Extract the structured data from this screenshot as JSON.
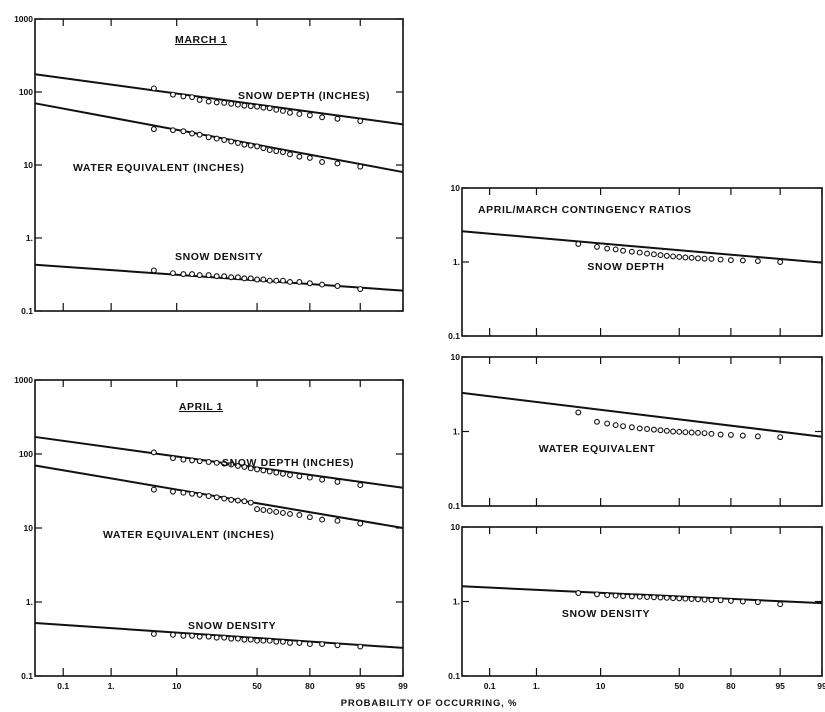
{
  "x_axis_label": "PROBABILITY OF OCCURRING, %",
  "chart_data": [
    {
      "type": "scatter",
      "id": "march",
      "title": "MARCH 1",
      "x_scale": "normal-probability",
      "y_scale": "log",
      "ylim": [
        0.1,
        1000
      ],
      "y_ticks": [
        "1000",
        "100",
        "10",
        "1.",
        "0.1"
      ],
      "x_ticks": [],
      "series": [
        {
          "name": "SNOW DEPTH (INCHES)",
          "line": [
            [
              0.02,
              175
            ],
            [
              99,
              36
            ]
          ],
          "points": [
            [
              5,
              112
            ],
            [
              9,
              92
            ],
            [
              12,
              87
            ],
            [
              15,
              85
            ],
            [
              18,
              78
            ],
            [
              22,
              74
            ],
            [
              26,
              72
            ],
            [
              30,
              71
            ],
            [
              34,
              69
            ],
            [
              38,
              67
            ],
            [
              42,
              65
            ],
            [
              46,
              64
            ],
            [
              50,
              63
            ],
            [
              54,
              61
            ],
            [
              58,
              60
            ],
            [
              62,
              57
            ],
            [
              66,
              55
            ],
            [
              70,
              52
            ],
            [
              75,
              50
            ],
            [
              80,
              48
            ],
            [
              85,
              45
            ],
            [
              90,
              43
            ],
            [
              95,
              40
            ]
          ]
        },
        {
          "name": "WATER EQUIVALENT (INCHES)",
          "line": [
            [
              0.02,
              70
            ],
            [
              99,
              8
            ]
          ],
          "points": [
            [
              5,
              31
            ],
            [
              9,
              30
            ],
            [
              12,
              29
            ],
            [
              15,
              27
            ],
            [
              18,
              26
            ],
            [
              22,
              24
            ],
            [
              26,
              23
            ],
            [
              30,
              22
            ],
            [
              34,
              21
            ],
            [
              38,
              20
            ],
            [
              42,
              19
            ],
            [
              46,
              18.5
            ],
            [
              50,
              18
            ],
            [
              54,
              17
            ],
            [
              58,
              16
            ],
            [
              62,
              15.5
            ],
            [
              66,
              15
            ],
            [
              70,
              14
            ],
            [
              75,
              13
            ],
            [
              80,
              12.5
            ],
            [
              85,
              11
            ],
            [
              90,
              10.5
            ],
            [
              95,
              9.5
            ]
          ]
        },
        {
          "name": "SNOW DENSITY",
          "line": [
            [
              0.02,
              0.43
            ],
            [
              99,
              0.19
            ]
          ],
          "points": [
            [
              5,
              0.36
            ],
            [
              9,
              0.33
            ],
            [
              12,
              0.32
            ],
            [
              15,
              0.32
            ],
            [
              18,
              0.31
            ],
            [
              22,
              0.31
            ],
            [
              26,
              0.3
            ],
            [
              30,
              0.3
            ],
            [
              34,
              0.29
            ],
            [
              38,
              0.29
            ],
            [
              42,
              0.28
            ],
            [
              46,
              0.28
            ],
            [
              50,
              0.27
            ],
            [
              54,
              0.27
            ],
            [
              58,
              0.26
            ],
            [
              62,
              0.26
            ],
            [
              66,
              0.26
            ],
            [
              70,
              0.25
            ],
            [
              75,
              0.25
            ],
            [
              80,
              0.24
            ],
            [
              85,
              0.23
            ],
            [
              90,
              0.22
            ],
            [
              95,
              0.2
            ]
          ]
        }
      ]
    },
    {
      "type": "scatter",
      "id": "april",
      "title": "APRIL 1",
      "x_scale": "normal-probability",
      "y_scale": "log",
      "ylim": [
        0.1,
        1000
      ],
      "y_ticks": [
        "1000",
        "100",
        "10",
        "1.",
        "0.1"
      ],
      "x_ticks": [
        "0.1",
        "1.",
        "10",
        "50",
        "80",
        "95",
        "99"
      ],
      "series": [
        {
          "name": "SNOW DEPTH (INCHES)",
          "line": [
            [
              0.02,
              170
            ],
            [
              99,
              35
            ]
          ],
          "points": [
            [
              5,
              105
            ],
            [
              9,
              88
            ],
            [
              12,
              84
            ],
            [
              15,
              82
            ],
            [
              18,
              80
            ],
            [
              22,
              78
            ],
            [
              26,
              76
            ],
            [
              30,
              74
            ],
            [
              34,
              72
            ],
            [
              38,
              69
            ],
            [
              42,
              67
            ],
            [
              46,
              64
            ],
            [
              50,
              62
            ],
            [
              54,
              60
            ],
            [
              58,
              58
            ],
            [
              62,
              56
            ],
            [
              66,
              54
            ],
            [
              70,
              52
            ],
            [
              75,
              50
            ],
            [
              80,
              48
            ],
            [
              85,
              45
            ],
            [
              90,
              42
            ],
            [
              95,
              38
            ]
          ]
        },
        {
          "name": "WATER EQUIVALENT (INCHES)",
          "line": [
            [
              0.02,
              70
            ],
            [
              99,
              10
            ]
          ],
          "points": [
            [
              5,
              33
            ],
            [
              9,
              31
            ],
            [
              12,
              30
            ],
            [
              15,
              29
            ],
            [
              18,
              28
            ],
            [
              22,
              27
            ],
            [
              26,
              26
            ],
            [
              30,
              25
            ],
            [
              34,
              24
            ],
            [
              38,
              23.5
            ],
            [
              42,
              23
            ],
            [
              46,
              22
            ],
            [
              50,
              18
            ],
            [
              54,
              17.5
            ],
            [
              58,
              17
            ],
            [
              62,
              16.5
            ],
            [
              66,
              16
            ],
            [
              70,
              15.5
            ],
            [
              75,
              15
            ],
            [
              80,
              14
            ],
            [
              85,
              13
            ],
            [
              90,
              12.5
            ],
            [
              95,
              11.5
            ]
          ]
        },
        {
          "name": "SNOW DENSITY",
          "line": [
            [
              0.02,
              0.52
            ],
            [
              99,
              0.24
            ]
          ],
          "points": [
            [
              5,
              0.37
            ],
            [
              9,
              0.36
            ],
            [
              12,
              0.35
            ],
            [
              15,
              0.35
            ],
            [
              18,
              0.34
            ],
            [
              22,
              0.34
            ],
            [
              26,
              0.33
            ],
            [
              30,
              0.33
            ],
            [
              34,
              0.32
            ],
            [
              38,
              0.32
            ],
            [
              42,
              0.31
            ],
            [
              46,
              0.31
            ],
            [
              50,
              0.3
            ],
            [
              54,
              0.3
            ],
            [
              58,
              0.3
            ],
            [
              62,
              0.29
            ],
            [
              66,
              0.29
            ],
            [
              70,
              0.28
            ],
            [
              75,
              0.28
            ],
            [
              80,
              0.27
            ],
            [
              85,
              0.27
            ],
            [
              90,
              0.26
            ],
            [
              95,
              0.25
            ]
          ]
        }
      ]
    },
    {
      "type": "scatter",
      "id": "ratios",
      "title": "APRIL/MARCH CONTINGENCY RATIOS",
      "x_scale": "normal-probability",
      "y_scale": "log",
      "x_ticks": [
        "0.1",
        "1.",
        "10",
        "50",
        "80",
        "95",
        "99"
      ],
      "panels": [
        {
          "name": "SNOW DEPTH",
          "ylim": [
            0.1,
            10
          ],
          "y_ticks": [
            "10",
            "1.",
            "0.1"
          ],
          "line": [
            [
              0.02,
              2.6
            ],
            [
              99,
              0.98
            ]
          ],
          "points": [
            [
              5,
              1.75
            ],
            [
              9,
              1.6
            ],
            [
              12,
              1.52
            ],
            [
              15,
              1.48
            ],
            [
              18,
              1.42
            ],
            [
              22,
              1.38
            ],
            [
              26,
              1.34
            ],
            [
              30,
              1.3
            ],
            [
              34,
              1.27
            ],
            [
              38,
              1.24
            ],
            [
              42,
              1.21
            ],
            [
              46,
              1.19
            ],
            [
              50,
              1.17
            ],
            [
              54,
              1.15
            ],
            [
              58,
              1.14
            ],
            [
              62,
              1.12
            ],
            [
              66,
              1.11
            ],
            [
              70,
              1.1
            ],
            [
              75,
              1.08
            ],
            [
              80,
              1.06
            ],
            [
              85,
              1.05
            ],
            [
              90,
              1.03
            ],
            [
              95,
              1.0
            ]
          ]
        },
        {
          "name": "WATER EQUIVALENT",
          "ylim": [
            0.1,
            10
          ],
          "y_ticks": [
            "10",
            "1.",
            "0.1"
          ],
          "line": [
            [
              0.02,
              3.3
            ],
            [
              99,
              0.85
            ]
          ],
          "points": [
            [
              5,
              1.8
            ],
            [
              9,
              1.35
            ],
            [
              12,
              1.28
            ],
            [
              15,
              1.22
            ],
            [
              18,
              1.18
            ],
            [
              22,
              1.14
            ],
            [
              26,
              1.1
            ],
            [
              30,
              1.08
            ],
            [
              34,
              1.06
            ],
            [
              38,
              1.04
            ],
            [
              42,
              1.02
            ],
            [
              46,
              1.0
            ],
            [
              50,
              0.99
            ],
            [
              54,
              0.98
            ],
            [
              58,
              0.97
            ],
            [
              62,
              0.96
            ],
            [
              66,
              0.95
            ],
            [
              70,
              0.93
            ],
            [
              75,
              0.91
            ],
            [
              80,
              0.9
            ],
            [
              85,
              0.88
            ],
            [
              90,
              0.86
            ],
            [
              95,
              0.84
            ]
          ]
        },
        {
          "name": "SNOW DENSITY",
          "ylim": [
            0.1,
            10
          ],
          "y_ticks": [
            "10",
            "1.",
            "0.1"
          ],
          "line": [
            [
              0.02,
              1.6
            ],
            [
              99,
              0.95
            ]
          ],
          "points": [
            [
              5,
              1.3
            ],
            [
              9,
              1.25
            ],
            [
              12,
              1.22
            ],
            [
              15,
              1.2
            ],
            [
              18,
              1.18
            ],
            [
              22,
              1.17
            ],
            [
              26,
              1.16
            ],
            [
              30,
              1.15
            ],
            [
              34,
              1.14
            ],
            [
              38,
              1.13
            ],
            [
              42,
              1.12
            ],
            [
              46,
              1.11
            ],
            [
              50,
              1.1
            ],
            [
              54,
              1.09
            ],
            [
              58,
              1.08
            ],
            [
              62,
              1.07
            ],
            [
              66,
              1.06
            ],
            [
              70,
              1.05
            ],
            [
              75,
              1.04
            ],
            [
              80,
              1.02
            ],
            [
              85,
              1.0
            ],
            [
              90,
              0.98
            ],
            [
              95,
              0.92
            ]
          ]
        }
      ]
    }
  ]
}
